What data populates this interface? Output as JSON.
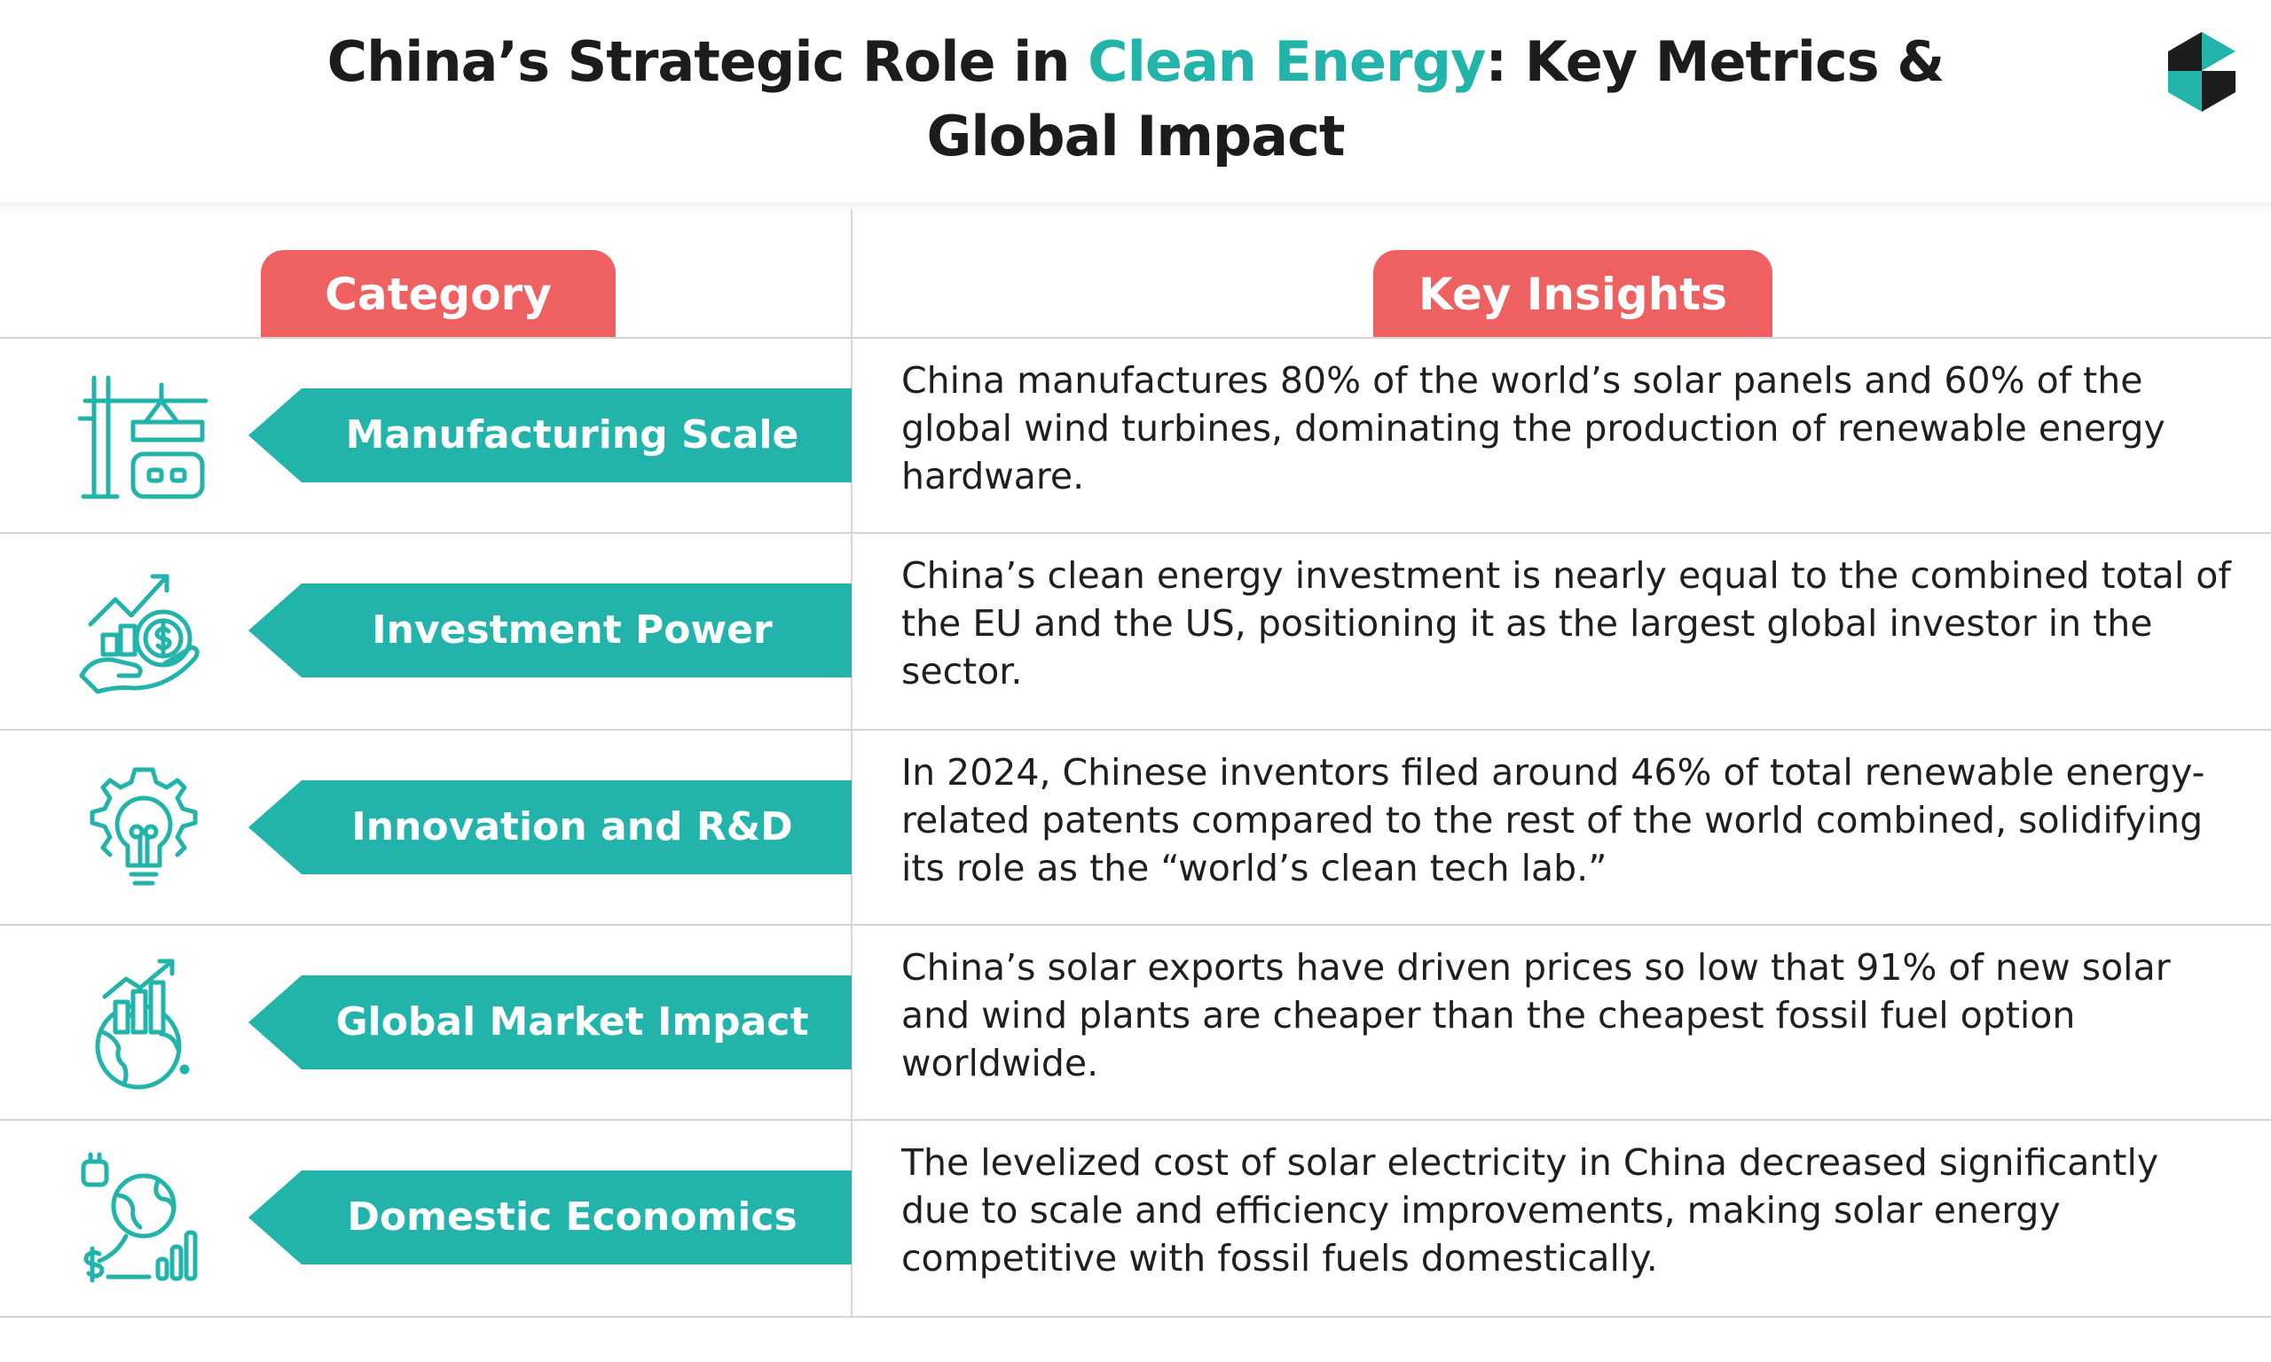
{
  "header": {
    "title_part1": "China’s Strategic Role in ",
    "title_accent": "Clean Energy",
    "title_part2": ": Key Metrics & Global Impact",
    "accent_color": "#22b3aa",
    "logo_icon": "brand-logo-icon"
  },
  "table": {
    "category_header": "Category",
    "insights_header": "Key Insights",
    "header_color": "#ef6061",
    "pill_color": "#22b3aa",
    "rows": [
      {
        "icon": "factory-crane-icon",
        "category": "Manufacturing Scale",
        "insight": "China manufactures 80% of the world’s solar panels and 60% of the global wind turbines, dominating the production of renewable energy hardware."
      },
      {
        "icon": "investment-hand-coin-icon",
        "category": "Investment Power",
        "insight": "China’s clean energy investment is nearly equal to the combined total of the EU and the US, positioning it as the largest global investor in the sector."
      },
      {
        "icon": "innovation-lightbulb-gear-icon",
        "category": "Innovation and R&D",
        "insight": "In 2024, Chinese inventors filed around 46% of total renewable energy-related patents compared to the rest of the world combined, solidifying its role as the “world’s clean tech lab.”"
      },
      {
        "icon": "globe-growth-chart-icon",
        "category": "Global Market Impact",
        "insight": "China’s solar exports have driven prices so low that 91% of new solar and wind plants are cheaper than the cheapest fossil fuel option worldwide."
      },
      {
        "icon": "domestic-economy-globe-bars-icon",
        "category": "Domestic Economics",
        "insight": "The levelized cost of solar electricity in China decreased significantly due to scale and efficiency improvements, making solar energy competitive with fossil fuels domestically."
      }
    ]
  }
}
